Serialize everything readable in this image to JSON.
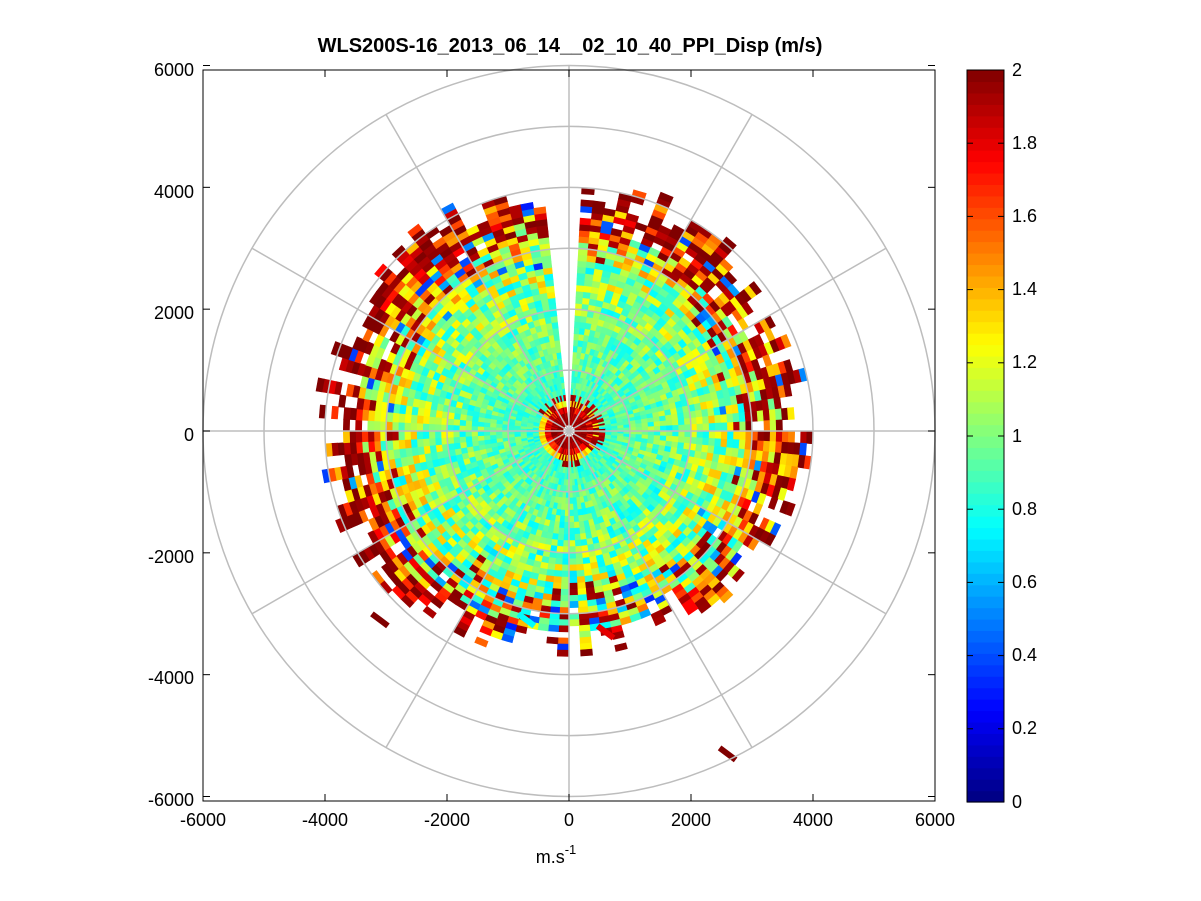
{
  "chart_data": {
    "type": "heatmap",
    "subtype": "polar-ppi",
    "title": "WLS200S-16_2013_06_14__02_10_40_PPI_Disp (m/s)",
    "xlabel_base": "m.s",
    "xlabel_exponent": "-1",
    "xlim": [
      -6000,
      6000
    ],
    "ylim": [
      -6000,
      6000
    ],
    "x_ticks": [
      "-6000",
      "-4000",
      "-2000",
      "0",
      "2000",
      "4000",
      "6000"
    ],
    "y_ticks": [
      "6000",
      "4000",
      "2000",
      "0",
      "-2000",
      "-4000",
      "-6000"
    ],
    "colorbar": {
      "range": [
        0,
        2
      ],
      "ticks": [
        "2",
        "1.8",
        "1.6",
        "1.4",
        "1.2",
        "1",
        "0.8",
        "0.6",
        "0.4",
        "0.2",
        "0"
      ],
      "colormap": "jet"
    },
    "polar_grid": {
      "ring_radii": [
        1000,
        2000,
        3000,
        4000,
        5000,
        6000
      ],
      "spoke_angles_deg": [
        0,
        30,
        60,
        90,
        120,
        150,
        180,
        210,
        240,
        270,
        300,
        330
      ]
    },
    "data_extent": {
      "max_range_north": 4000,
      "max_range_south": 3500,
      "max_range_east": 3800,
      "max_range_west": 4000,
      "gap_azimuth_deg": [
        -8,
        1
      ],
      "near_field_high_radius": 600
    },
    "data_rings": [
      {
        "r": 250,
        "value": 1.95
      },
      {
        "r": 500,
        "value": 0.85
      },
      {
        "r": 800,
        "value": 0.9
      },
      {
        "r": 1200,
        "value": 0.95
      },
      {
        "r": 1600,
        "value": 0.95
      },
      {
        "r": 2000,
        "value": 1.0
      },
      {
        "r": 2400,
        "value": 1.05
      },
      {
        "r": 2800,
        "value": 1.1
      },
      {
        "r": 3200,
        "value": 1.3
      },
      {
        "r": 3500,
        "value": 1.7
      },
      {
        "r": 3800,
        "value": 1.95
      }
    ],
    "isolated_cells": [
      {
        "x": -3100,
        "y": -3100,
        "value": 2.0
      },
      {
        "x": 2600,
        "y": -5300,
        "value": 2.0
      },
      {
        "x": -700,
        "y": -3100,
        "value": 0.75
      },
      {
        "x": 600,
        "y": -3300,
        "value": 1.8
      }
    ]
  }
}
